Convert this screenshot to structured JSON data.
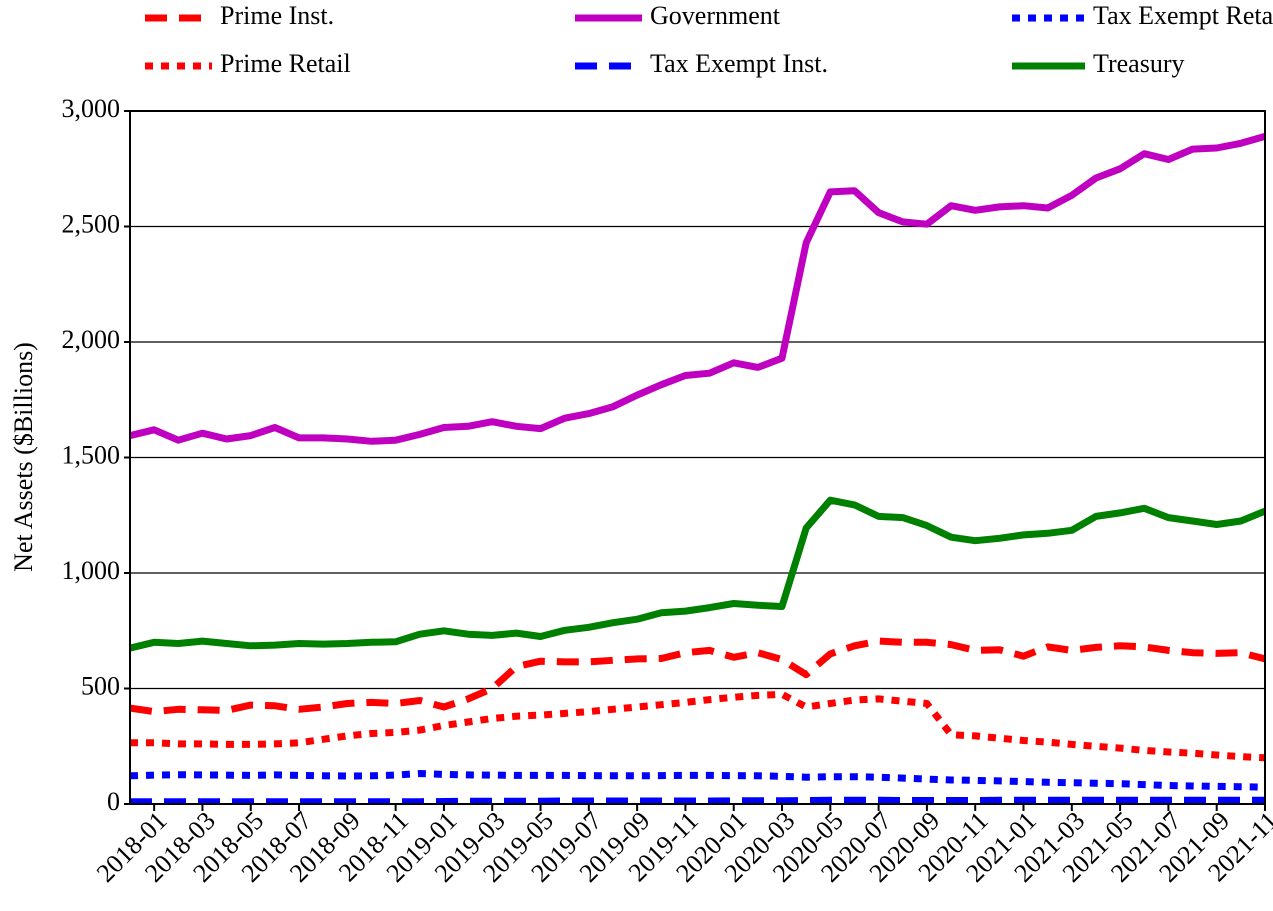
{
  "chart_data": {
    "type": "line",
    "ylabel": "Net Assets ($Billions)",
    "categories": [
      null,
      "2018-01",
      null,
      "2018-03",
      null,
      "2018-05",
      null,
      "2018-07",
      null,
      "2018-09",
      null,
      "2018-11",
      null,
      "2019-01",
      null,
      "2019-03",
      null,
      "2019-05",
      null,
      "2019-07",
      null,
      "2019-09",
      null,
      "2019-11",
      null,
      "2020-01",
      null,
      "2020-03",
      null,
      "2020-05",
      null,
      "2020-07",
      null,
      "2020-09",
      null,
      "2020-11",
      null,
      "2021-01",
      null,
      "2021-03",
      null,
      "2021-05",
      null,
      "2021-07",
      null,
      "2021-09",
      null,
      "2021-11"
    ],
    "ylim": [
      0,
      3000
    ],
    "yticks": [
      0,
      500,
      {
        "value": 1000,
        "label": "1,000"
      },
      {
        "value": 1500,
        "label": "1,500"
      },
      {
        "value": 2000,
        "label": "2,000"
      },
      {
        "value": 2500,
        "label": "2,500"
      },
      {
        "value": 3000,
        "label": "3,000"
      }
    ],
    "grid": true,
    "series": [
      {
        "name": "Prime Inst.",
        "color": "#ff0000",
        "dash": "dashed",
        "values": [
          415,
          400,
          410,
          408,
          405,
          428,
          425,
          410,
          420,
          435,
          440,
          435,
          448,
          420,
          455,
          500,
          595,
          618,
          615,
          615,
          622,
          628,
          630,
          655,
          665,
          635,
          655,
          625,
          560,
          650,
          685,
          705,
          700,
          700,
          690,
          665,
          668,
          640,
          680,
          665,
          678,
          685,
          680,
          665,
          655,
          652,
          655,
          628
        ]
      },
      {
        "name": "Prime Retail",
        "color": "#ff0000",
        "dash": "dotted",
        "values": [
          265,
          265,
          260,
          260,
          258,
          258,
          260,
          265,
          280,
          295,
          305,
          310,
          320,
          340,
          355,
          370,
          380,
          385,
          392,
          400,
          410,
          420,
          430,
          440,
          452,
          462,
          470,
          475,
          420,
          435,
          450,
          455,
          445,
          435,
          300,
          295,
          285,
          275,
          268,
          258,
          250,
          242,
          232,
          225,
          220,
          212,
          205,
          200
        ]
      },
      {
        "name": "Government",
        "color": "#c000c0",
        "dash": "solid",
        "values": [
          1595,
          1620,
          1575,
          1605,
          1580,
          1595,
          1630,
          1585,
          1585,
          1580,
          1570,
          1575,
          1600,
          1630,
          1635,
          1655,
          1635,
          1625,
          1670,
          1690,
          1720,
          1770,
          1815,
          1855,
          1865,
          1910,
          1890,
          1930,
          2430,
          2650,
          2655,
          2560,
          2520,
          2510,
          2590,
          2570,
          2585,
          2590,
          2580,
          2635,
          2710,
          2750,
          2815,
          2790,
          2835,
          2840,
          2860,
          2890
        ]
      },
      {
        "name": "Tax Exempt Inst.",
        "color": "#0000ff",
        "dash": "dashed",
        "values": [
          10,
          10,
          10,
          10,
          10,
          10,
          10,
          10,
          10,
          10,
          10,
          10,
          10,
          11,
          12,
          12,
          12,
          12,
          13,
          13,
          13,
          13,
          13,
          13,
          13,
          14,
          14,
          14,
          15,
          16,
          16,
          16,
          15,
          15,
          15,
          15,
          16,
          16,
          16,
          16,
          16,
          16,
          16,
          16,
          16,
          16,
          16,
          16
        ]
      },
      {
        "name": "Tax Exempt Retail",
        "color": "#0000ff",
        "dash": "dotted",
        "values": [
          122,
          125,
          127,
          126,
          125,
          124,
          126,
          124,
          122,
          121,
          122,
          125,
          132,
          128,
          126,
          125,
          124,
          124,
          124,
          123,
          122,
          122,
          123,
          124,
          124,
          123,
          122,
          120,
          116,
          118,
          118,
          116,
          112,
          108,
          104,
          102,
          100,
          97,
          94,
          92,
          90,
          88,
          84,
          80,
          78,
          76,
          75,
          73
        ]
      },
      {
        "name": "Treasury",
        "color": "#008000",
        "dash": "solid",
        "values": [
          675,
          700,
          695,
          705,
          695,
          685,
          688,
          695,
          692,
          695,
          700,
          702,
          735,
          750,
          735,
          730,
          740,
          725,
          752,
          765,
          785,
          800,
          828,
          835,
          850,
          868,
          860,
          855,
          1195,
          1315,
          1295,
          1245,
          1240,
          1205,
          1155,
          1140,
          1150,
          1165,
          1172,
          1185,
          1245,
          1260,
          1280,
          1240,
          1225,
          1210,
          1225,
          1268
        ]
      }
    ]
  }
}
